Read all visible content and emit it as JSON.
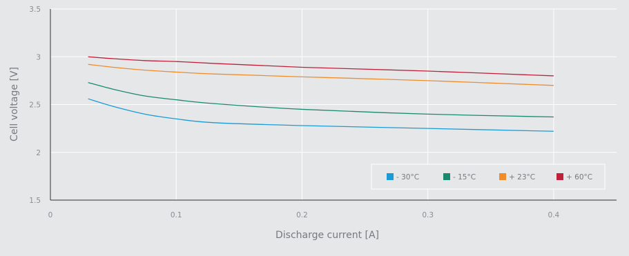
{
  "chart_data": {
    "type": "line",
    "title": "",
    "xlabel": "Discharge current [A]",
    "ylabel": "Cell voltage [V]",
    "xlim": [
      0,
      0.45
    ],
    "ylim": [
      1.5,
      3.5
    ],
    "x_ticks": [
      0,
      0.1,
      0.2,
      0.3,
      0.4
    ],
    "x_tick_labels": [
      "0",
      "0.1",
      "0.2",
      "0.3",
      "0.4"
    ],
    "y_ticks": [
      1.5,
      2,
      2.5,
      3,
      3.5
    ],
    "y_tick_labels": [
      "1.5",
      "2",
      "2.5",
      "3",
      "3.5"
    ],
    "grid": true,
    "legend_position": "bottom-right",
    "x": [
      0.03,
      0.05,
      0.075,
      0.1,
      0.13,
      0.2,
      0.3,
      0.4
    ],
    "series": [
      {
        "name": "- 30°C",
        "color": "#1a9ad6",
        "values": [
          2.56,
          2.48,
          2.4,
          2.35,
          2.31,
          2.28,
          2.25,
          2.22
        ]
      },
      {
        "name": "- 15°C",
        "color": "#1a8a6e",
        "values": [
          2.73,
          2.66,
          2.59,
          2.55,
          2.51,
          2.45,
          2.4,
          2.37
        ]
      },
      {
        "name": "+ 23°C",
        "color": "#f08c2a",
        "values": [
          2.92,
          2.89,
          2.86,
          2.84,
          2.82,
          2.79,
          2.75,
          2.7
        ]
      },
      {
        "name": "+ 60°C",
        "color": "#c0203a",
        "values": [
          3.0,
          2.98,
          2.96,
          2.95,
          2.93,
          2.89,
          2.85,
          2.8
        ]
      }
    ]
  }
}
